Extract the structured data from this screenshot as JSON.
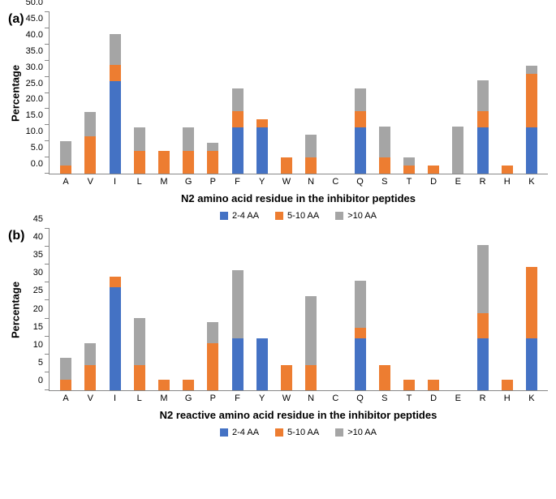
{
  "colors": {
    "s1": "#4472c4",
    "s2": "#ed7d31",
    "s3": "#a5a5a5",
    "axis": "#888888",
    "bg": "#ffffff"
  },
  "legend": {
    "s1": "2-4 AA",
    "s2": "5-10 AA",
    "s3": ">10 AA"
  },
  "categories": [
    "A",
    "V",
    "I",
    "L",
    "M",
    "G",
    "P",
    "F",
    "Y",
    "W",
    "N",
    "C",
    "Q",
    "S",
    "T",
    "D",
    "E",
    "R",
    "H",
    "K"
  ],
  "chart_a": {
    "panel": "(a)",
    "ylabel": "Percentage",
    "xlabel": "N2 amino acid residue in the inhibitor peptides",
    "ymax": 50,
    "ytick_step": 5,
    "decimals": 1,
    "data": {
      "A": {
        "s1": 0,
        "s2": 2.5,
        "s3": 7.5
      },
      "V": {
        "s1": 0,
        "s2": 11.5,
        "s3": 7.4
      },
      "I": {
        "s1": 28.5,
        "s2": 5,
        "s3": 9.5
      },
      "L": {
        "s1": 0,
        "s2": 7,
        "s3": 7.2
      },
      "M": {
        "s1": 0,
        "s2": 7,
        "s3": 0
      },
      "G": {
        "s1": 0,
        "s2": 7,
        "s3": 7.2
      },
      "P": {
        "s1": 0,
        "s2": 7,
        "s3": 2.5
      },
      "F": {
        "s1": 14.3,
        "s2": 5,
        "s3": 7
      },
      "Y": {
        "s1": 14.3,
        "s2": 2.5,
        "s3": 0
      },
      "W": {
        "s1": 0,
        "s2": 5,
        "s3": 0
      },
      "N": {
        "s1": 0,
        "s2": 5,
        "s3": 7
      },
      "C": {
        "s1": 0,
        "s2": 0,
        "s3": 0
      },
      "Q": {
        "s1": 14.3,
        "s2": 5,
        "s3": 7
      },
      "S": {
        "s1": 0,
        "s2": 5,
        "s3": 9.5
      },
      "T": {
        "s1": 0,
        "s2": 2.5,
        "s3": 2.5
      },
      "D": {
        "s1": 0,
        "s2": 2.5,
        "s3": 0
      },
      "E": {
        "s1": 0,
        "s2": 0,
        "s3": 14.5
      },
      "R": {
        "s1": 14.3,
        "s2": 5,
        "s3": 9.5
      },
      "H": {
        "s1": 0,
        "s2": 2.5,
        "s3": 0
      },
      "K": {
        "s1": 14.3,
        "s2": 16.5,
        "s3": 2.4
      }
    }
  },
  "chart_b": {
    "panel": "(b)",
    "ylabel": "Percentage",
    "xlabel": "N2 reactive amino acid residue in the inhibitor peptides",
    "ymax": 45,
    "ytick_step": 5,
    "decimals": 0,
    "data": {
      "A": {
        "s1": 0,
        "s2": 3,
        "s3": 6
      },
      "V": {
        "s1": 0,
        "s2": 7,
        "s3": 6
      },
      "I": {
        "s1": 28.5,
        "s2": 3,
        "s3": 0
      },
      "L": {
        "s1": 0,
        "s2": 7,
        "s3": 13
      },
      "M": {
        "s1": 0,
        "s2": 3,
        "s3": 0
      },
      "G": {
        "s1": 0,
        "s2": 3,
        "s3": 0
      },
      "P": {
        "s1": 0,
        "s2": 13,
        "s3": 6
      },
      "F": {
        "s1": 14.3,
        "s2": 0,
        "s3": 19
      },
      "Y": {
        "s1": 14.3,
        "s2": 0,
        "s3": 0
      },
      "W": {
        "s1": 0,
        "s2": 7,
        "s3": 0
      },
      "N": {
        "s1": 0,
        "s2": 7,
        "s3": 19
      },
      "C": {
        "s1": 0,
        "s2": 0,
        "s3": 0
      },
      "Q": {
        "s1": 14.3,
        "s2": 3,
        "s3": 13
      },
      "S": {
        "s1": 0,
        "s2": 7,
        "s3": 0
      },
      "T": {
        "s1": 0,
        "s2": 3,
        "s3": 0
      },
      "D": {
        "s1": 0,
        "s2": 3,
        "s3": 0
      },
      "E": {
        "s1": 0,
        "s2": 0,
        "s3": 0
      },
      "R": {
        "s1": 14.3,
        "s2": 7,
        "s3": 19
      },
      "H": {
        "s1": 0,
        "s2": 3,
        "s3": 0
      },
      "K": {
        "s1": 14.3,
        "s2": 20,
        "s3": 0
      }
    }
  }
}
